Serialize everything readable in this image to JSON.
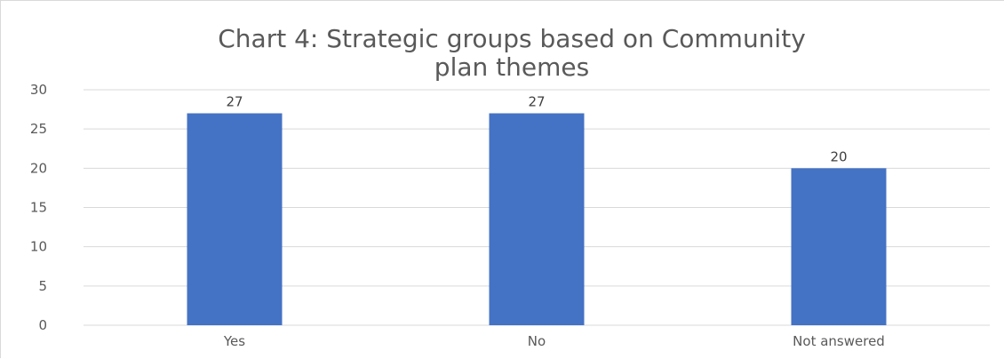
{
  "chart_data": {
    "type": "bar",
    "title_lines": [
      "Chart 4: Strategic groups based on Community",
      "plan themes"
    ],
    "categories": [
      "Yes",
      "No",
      "Not answered"
    ],
    "values": [
      27,
      27,
      20
    ],
    "data_labels": [
      "27",
      "27",
      "20"
    ],
    "ylim": [
      0,
      30
    ],
    "yticks": [
      "0",
      "5",
      "10",
      "15",
      "20",
      "25",
      "30"
    ],
    "grid": true,
    "legend": "none",
    "bar_color": "#4472C4",
    "grid_color": "#d9d9d9",
    "text_color": "#595959"
  }
}
